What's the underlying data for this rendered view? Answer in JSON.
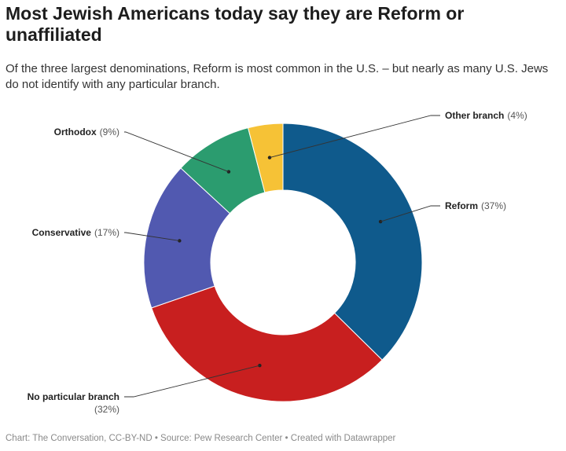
{
  "title": "Most Jewish Americans today say they are Reform or unaffiliated",
  "subtitle": "Of the three largest denominations, Reform is most common in the U.S. – but nearly as many U.S. Jews do not identify with any particular branch.",
  "footer": "Chart: The Conversation, CC-BY-ND • Source: Pew Research Center • Created with Datawrapper",
  "chart_data": {
    "type": "pie",
    "donut": true,
    "title": "Most Jewish Americans today say they are Reform or unaffiliated",
    "subtitle": "Of the three largest denominations, Reform is most common in the U.S. – but nearly as many U.S. Jews do not identify with any particular branch.",
    "categories": [
      "Reform",
      "No particular branch",
      "Conservative",
      "Orthodox",
      "Other branch"
    ],
    "values": [
      37,
      32,
      17,
      9,
      4
    ],
    "value_labels": [
      "(37%)",
      "(32%)",
      "(17%)",
      "(9%)",
      "(4%)"
    ],
    "colors": [
      "#0f5a8c",
      "#c81f1f",
      "#5159b0",
      "#2b9c6f",
      "#f6c236"
    ],
    "legend": "none",
    "grid": false
  }
}
